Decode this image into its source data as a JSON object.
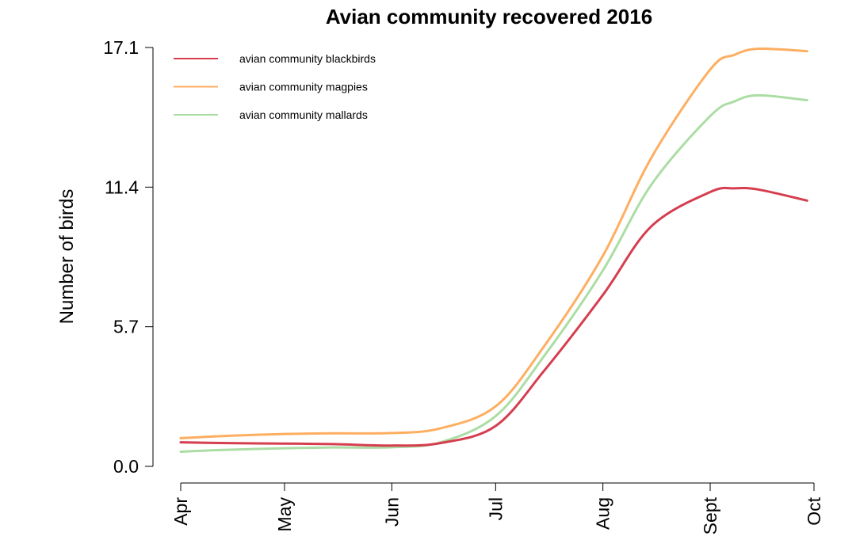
{
  "chart_data": {
    "type": "line",
    "title": "Avian community recovered 2016",
    "xlabel": "",
    "ylabel": "Number of birds",
    "x_ticks": [
      "Apr",
      "May",
      "Jun",
      "Jul",
      "Aug",
      "Sept",
      "Oct"
    ],
    "y_ticks": [
      "0.0",
      "5.7",
      "11.4",
      "17.1"
    ],
    "ylim": [
      0,
      17.1
    ],
    "legend_position": "top-left",
    "grid": false,
    "x": [
      "2016-04-01",
      "2016-04-15",
      "2016-05-01",
      "2016-05-15",
      "2016-06-01",
      "2016-06-15",
      "2016-07-01",
      "2016-07-15",
      "2016-08-01",
      "2016-08-15",
      "2016-09-01",
      "2016-09-08",
      "2016-09-15",
      "2016-09-29"
    ],
    "series": [
      {
        "name": "avian community blackbirds",
        "color": "#d53e4f",
        "values": [
          0.98,
          0.95,
          0.93,
          0.91,
          0.85,
          0.95,
          1.65,
          3.9,
          7.0,
          9.8,
          11.2,
          11.35,
          11.3,
          10.85
        ]
      },
      {
        "name": "avian community magpies",
        "color": "#fdae61",
        "values": [
          1.15,
          1.25,
          1.32,
          1.35,
          1.36,
          1.55,
          2.45,
          4.9,
          8.6,
          12.6,
          16.2,
          16.8,
          17.05,
          16.95
        ]
      },
      {
        "name": "avian community mallards",
        "color": "#abdda4",
        "values": [
          0.6,
          0.68,
          0.74,
          0.77,
          0.78,
          0.98,
          2.05,
          4.5,
          8.0,
          11.5,
          14.3,
          14.9,
          15.15,
          14.95
        ]
      }
    ]
  }
}
